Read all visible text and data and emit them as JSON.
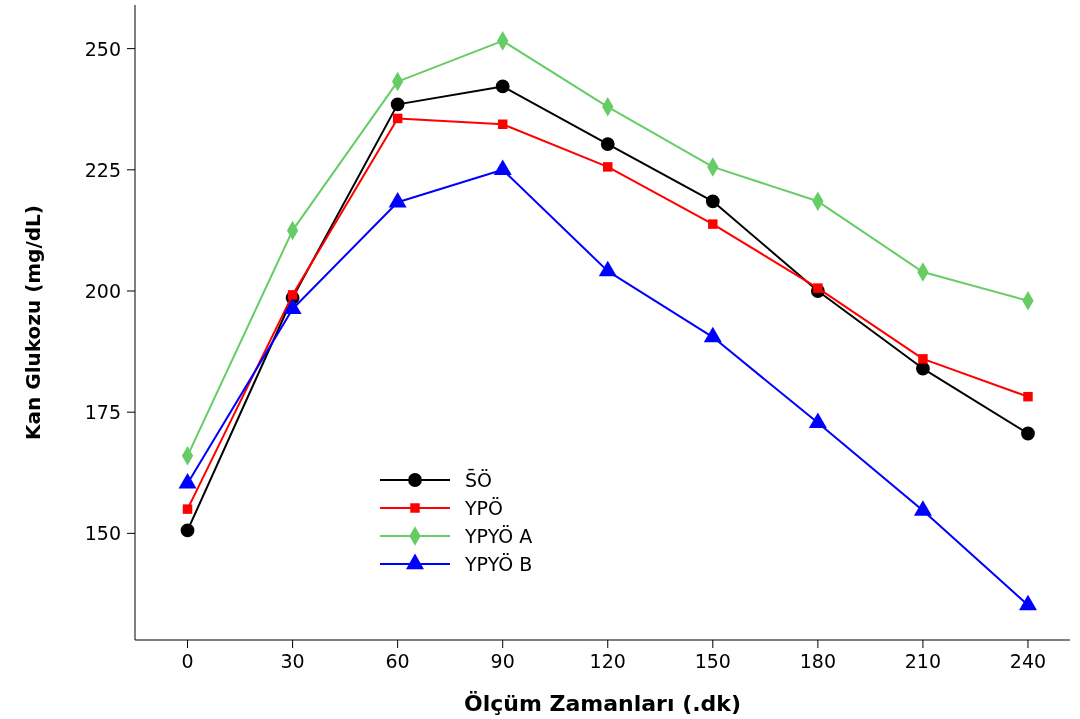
{
  "chart_data": {
    "type": "line",
    "xlabel": "Ölçüm Zamanları (.dk)",
    "ylabel": "Kan Glukozu (mg/dL)",
    "x": [
      0,
      30,
      60,
      90,
      120,
      150,
      180,
      210,
      240
    ],
    "xlim": [
      -15,
      252
    ],
    "xticks": [
      0,
      30,
      60,
      90,
      120,
      150,
      180,
      210,
      240
    ],
    "ylim": [
      128,
      259
    ],
    "yticks": [
      150,
      175,
      200,
      225,
      250
    ],
    "grid": false,
    "legend": "bottom left",
    "line_style": "solid",
    "series": [
      {
        "name": "S̄Ö",
        "color": "#000000",
        "marker": "circle",
        "values": [
          150.6,
          198.6,
          238.5,
          242.2,
          230.3,
          218.5,
          200,
          184,
          170.6
        ]
      },
      {
        "name": "YPÖ",
        "color": "#ff0000",
        "marker": "square",
        "values": [
          155,
          199.2,
          235.6,
          234.4,
          225.6,
          213.8,
          200.6,
          186,
          178.2
        ]
      },
      {
        "name": "YPYÖ A",
        "color": "#66cc66",
        "marker": "diamond",
        "values": [
          166,
          212.5,
          243.2,
          251.6,
          238,
          225.6,
          218.5,
          203.9,
          198
        ]
      },
      {
        "name": "YPYÖ B",
        "color": "#0000ff",
        "marker": "triangle",
        "values": [
          160.3,
          196.3,
          218.3,
          225,
          204.1,
          190.5,
          172.8,
          154.7,
          135.2
        ]
      }
    ]
  }
}
